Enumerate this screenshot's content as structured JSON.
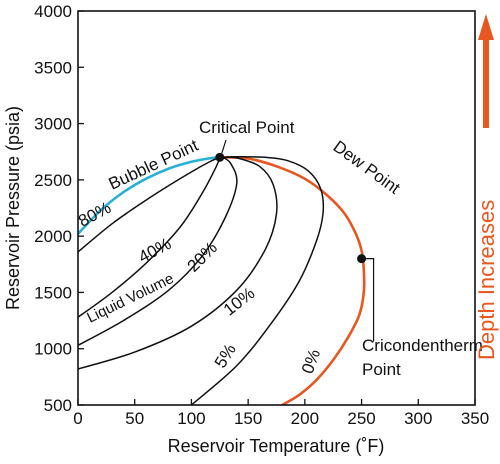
{
  "chart_data": {
    "type": "line",
    "title": "",
    "xlabel": "Reservoir Temperature (˚F)",
    "ylabel": "Reservoir Pressure (psia)",
    "xlim": [
      0,
      350
    ],
    "ylim": [
      500,
      4000
    ],
    "xticks": [
      0,
      50,
      100,
      150,
      200,
      250,
      300,
      350
    ],
    "yticks": [
      500,
      1000,
      1500,
      2000,
      2500,
      3000,
      3500,
      4000
    ],
    "grid": false,
    "colors": {
      "bubble": "#2ab0d6",
      "dew": "#e8571f",
      "quality": "#111111",
      "arrow": "#e8571f"
    },
    "series": [
      {
        "name": "Bubble Point",
        "role": "bubble",
        "x": [
          0,
          20,
          40,
          60,
          80,
          100,
          115,
          125
        ],
        "y": [
          2020,
          2230,
          2390,
          2510,
          2600,
          2660,
          2690,
          2700
        ]
      },
      {
        "name": "Dew Point",
        "role": "dew",
        "x": [
          125,
          150,
          175,
          200,
          220,
          235,
          245,
          250,
          252,
          252,
          248,
          238,
          225,
          210,
          195,
          180
        ],
        "y": [
          2700,
          2690,
          2620,
          2510,
          2360,
          2200,
          2020,
          1870,
          1700,
          1500,
          1300,
          1100,
          900,
          720,
          590,
          500
        ]
      },
      {
        "name": "80%",
        "role": "quality",
        "x": [
          0,
          30,
          60,
          85,
          105,
          118,
          125
        ],
        "y": [
          1860,
          2110,
          2320,
          2480,
          2600,
          2670,
          2700
        ]
      },
      {
        "name": "40%",
        "role": "quality",
        "x": [
          0,
          30,
          60,
          90,
          110,
          122,
          125
        ],
        "y": [
          1280,
          1500,
          1760,
          2080,
          2390,
          2620,
          2700
        ]
      },
      {
        "name": "20%",
        "role": "quality",
        "x": [
          0,
          40,
          80,
          110,
          130,
          140,
          135,
          128
        ],
        "y": [
          1030,
          1250,
          1520,
          1830,
          2170,
          2470,
          2640,
          2700
        ]
      },
      {
        "name": "10%",
        "role": "quality",
        "x": [
          0,
          50,
          100,
          140,
          165,
          175,
          172,
          160,
          140,
          128
        ],
        "y": [
          820,
          970,
          1200,
          1520,
          1880,
          2200,
          2460,
          2620,
          2695,
          2700
        ]
      },
      {
        "name": "5%",
        "role": "quality",
        "x": [
          100,
          140,
          170,
          195,
          210,
          216,
          214,
          203,
          185,
          165,
          140,
          128
        ],
        "y": [
          500,
          850,
          1220,
          1600,
          1950,
          2200,
          2420,
          2580,
          2670,
          2700,
          2705,
          2700
        ]
      }
    ],
    "quality_labels": [
      {
        "text": "80%",
        "x": 17,
        "y": 2150,
        "rotate": -28
      },
      {
        "text": "40%",
        "x": 70,
        "y": 1830,
        "rotate": -28
      },
      {
        "text": "20%",
        "x": 113,
        "y": 1780,
        "rotate": -45
      },
      {
        "text": "10%",
        "x": 145,
        "y": 1380,
        "rotate": -38
      },
      {
        "text": "5%",
        "x": 134,
        "y": 910,
        "rotate": -58
      },
      {
        "text": "0%",
        "x": 210,
        "y": 870,
        "rotate": -70
      }
    ],
    "annotations": {
      "critical_point": {
        "label": "Critical Point",
        "x": 125,
        "y": 2700
      },
      "cricondentherm": {
        "label_line1": "Cricondentherm",
        "label_line2": "Point",
        "x": 250,
        "y": 1800
      },
      "bubble_point_label": "Bubble Point",
      "dew_point_label": "Dew Point",
      "liquid_volume_label": "Liquid Volume",
      "side_label": "Depth Increases"
    }
  }
}
